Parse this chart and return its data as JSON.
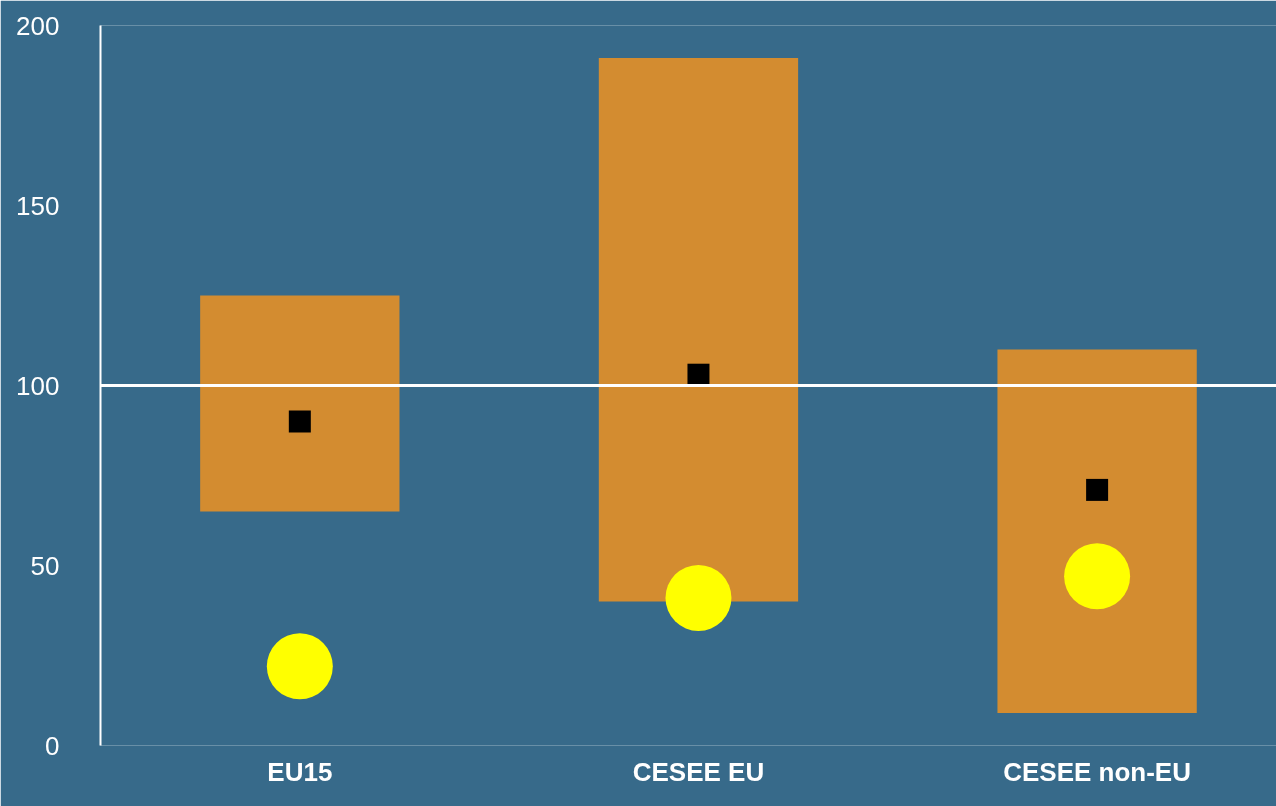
{
  "chart_data": {
    "type": "bar",
    "categories": [
      "EU15",
      "CESEE EU",
      "CESEE non-EU"
    ],
    "ylim": [
      0,
      200
    ],
    "yticks": [
      0,
      50,
      100,
      150,
      200
    ],
    "grid": false,
    "series": [
      {
        "color": "#d38c30",
        "base": [
          65,
          40,
          9
        ],
        "values": [
          60,
          151,
          101
        ]
      },
      {
        "type": "scatter",
        "marker": "square",
        "color": "#000000",
        "values": [
          90,
          103,
          71
        ]
      },
      {
        "type": "scatter",
        "marker": "circle",
        "color": "#ffff00",
        "values": [
          22,
          41,
          47
        ]
      }
    ],
    "ref_lines": [
      {
        "axis": "y",
        "value": 100,
        "color": "#ffffff"
      }
    ]
  }
}
